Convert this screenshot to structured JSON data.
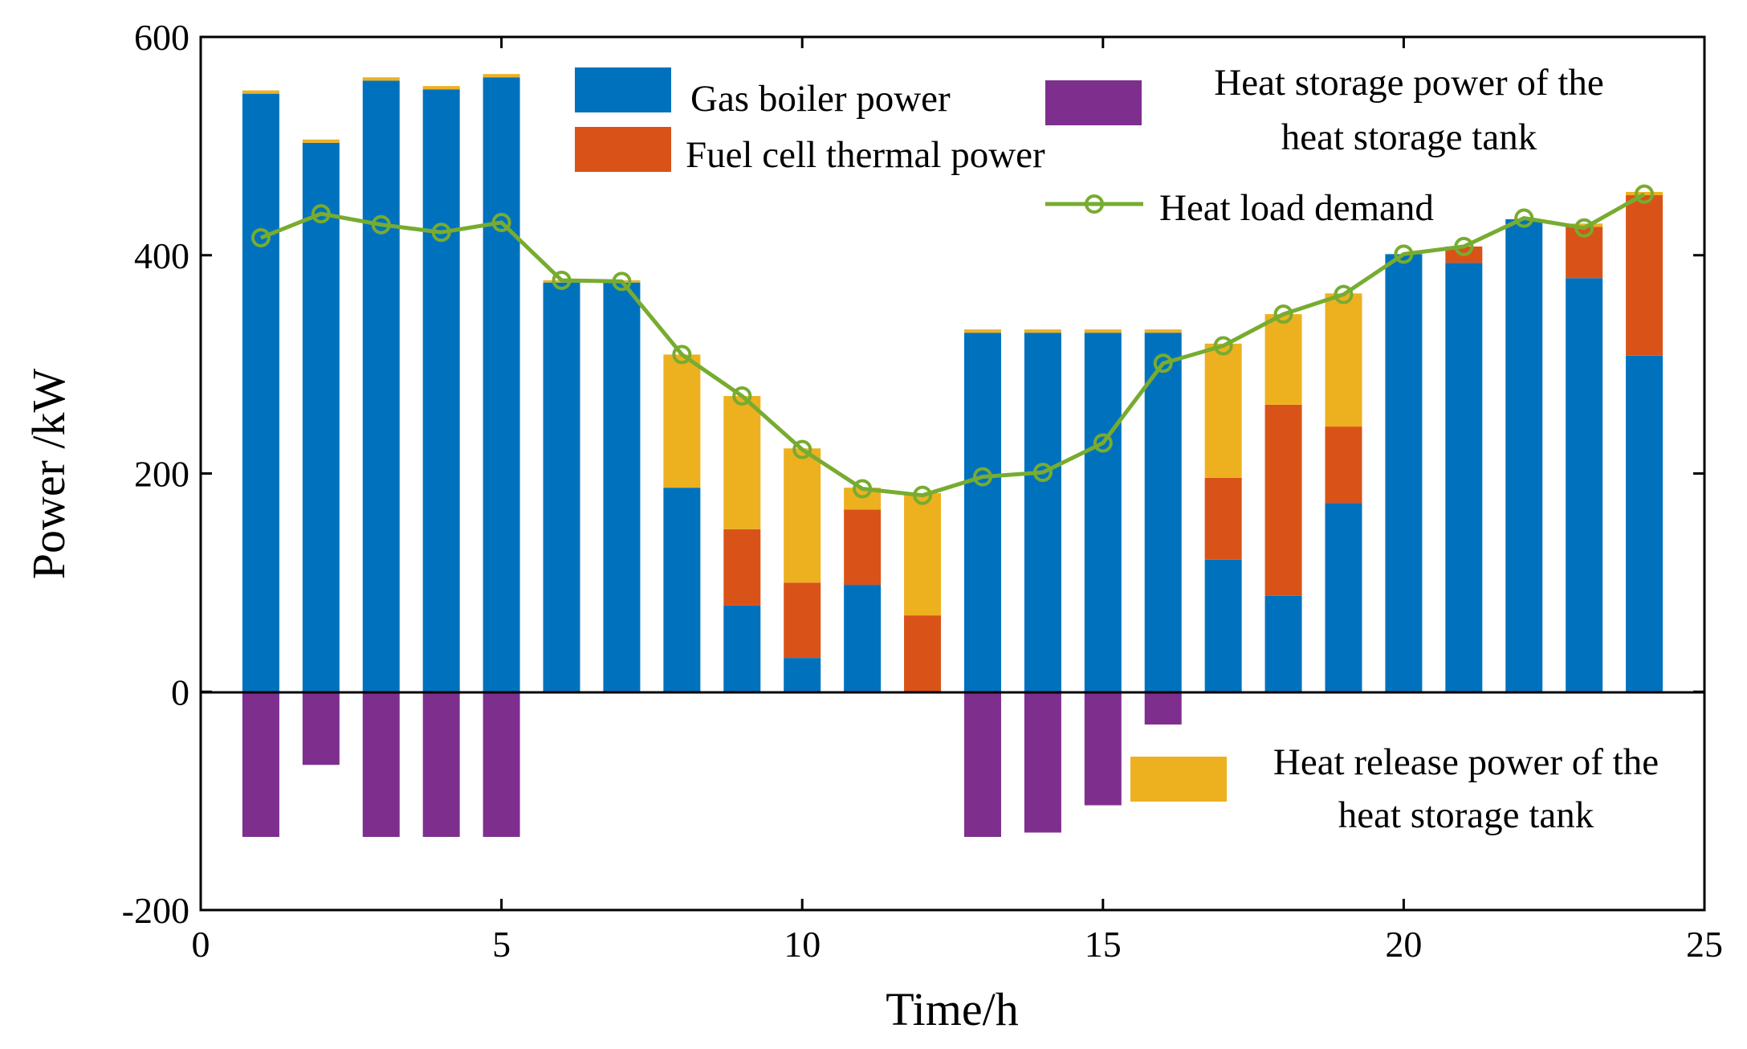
{
  "chart_data": {
    "type": "bar",
    "title": "",
    "xlabel": "Time/h",
    "ylabel": "Power /kW",
    "xlim": [
      0,
      25
    ],
    "ylim": [
      -200,
      600
    ],
    "xticks": [
      "0",
      "5",
      "10",
      "15",
      "20",
      "25"
    ],
    "yticks": [
      "600",
      "400",
      "200",
      "0",
      "-200"
    ],
    "x": [
      1,
      2,
      3,
      4,
      5,
      6,
      7,
      8,
      9,
      10,
      11,
      12,
      13,
      14,
      15,
      16,
      17,
      18,
      19,
      20,
      21,
      22,
      23,
      24
    ],
    "stacked": true,
    "grid": false,
    "series": [
      {
        "name": "Gas boiler power",
        "color": "#0072BD",
        "values": [
          548,
          503,
          560,
          552,
          563,
          375,
          375,
          187,
          79,
          31,
          98,
          0,
          329,
          329,
          329,
          329,
          121,
          88,
          173,
          401,
          393,
          433,
          379,
          308
        ]
      },
      {
        "name": "Fuel cell thermal power",
        "color": "#D95319",
        "values": [
          0,
          0,
          0,
          0,
          0,
          0,
          0,
          0,
          70,
          69,
          69,
          70,
          0,
          0,
          0,
          0,
          75,
          175,
          70,
          0,
          15,
          0,
          47,
          147
        ]
      },
      {
        "name": "Heat release power of the heat storage tank",
        "color": "#EDB120",
        "values": [
          3,
          3,
          3,
          3,
          3,
          2,
          2,
          122,
          122,
          123,
          20,
          112,
          3,
          3,
          3,
          3,
          123,
          83,
          122,
          0,
          0,
          0,
          3,
          3
        ]
      },
      {
        "name": "Heat storage power of the heat storage tank",
        "color": "#7E2F8E",
        "values": [
          -133,
          -67,
          -133,
          -133,
          -133,
          0,
          0,
          0,
          0,
          0,
          0,
          0,
          -133,
          -129,
          -104,
          -30,
          0,
          0,
          0,
          0,
          0,
          0,
          0,
          0
        ]
      },
      {
        "name": "Heat load demand",
        "type": "line",
        "color": "#77AC30",
        "values": [
          416,
          438,
          428,
          421,
          430,
          377,
          376,
          309,
          271,
          222,
          186,
          180,
          197,
          201,
          228,
          301,
          317,
          346,
          364,
          401,
          408,
          434,
          425,
          456
        ]
      }
    ],
    "legend": {
      "gas": "Gas boiler power",
      "fuel": "Fuel cell thermal power",
      "storage_line1": "Heat storage power of the",
      "storage_line2": "heat storage tank",
      "load": "Heat load demand",
      "release_line1": "Heat release power of the",
      "release_line2": "heat storage tank"
    }
  }
}
